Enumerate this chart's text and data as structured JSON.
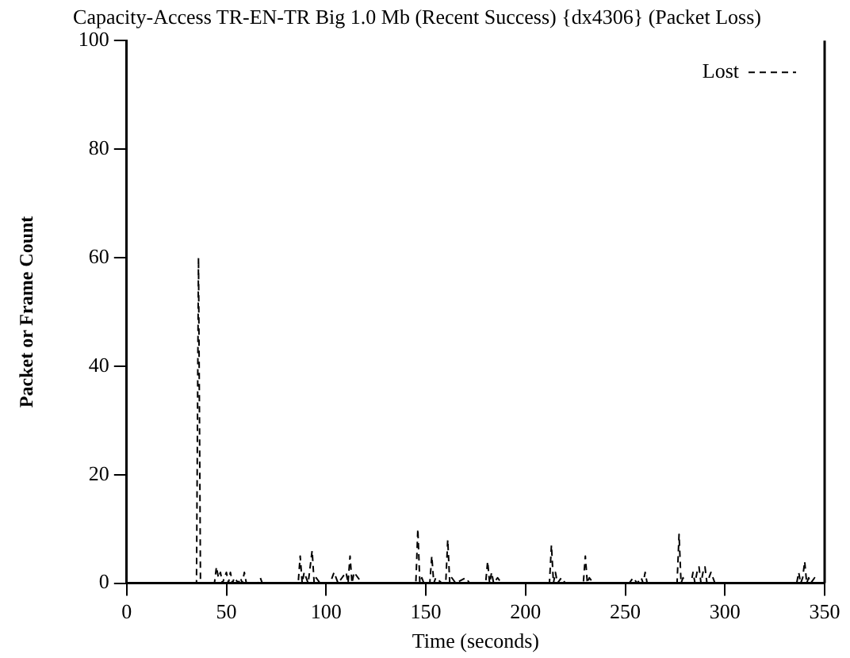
{
  "chart_data": {
    "type": "line",
    "title": "Capacity-Access TR-EN-TR Big 1.0 Mb (Recent Success) {dx4306} (Packet Loss)",
    "xlabel": "Time (seconds)",
    "ylabel": "Packet or Frame Count",
    "xlim": [
      0,
      350
    ],
    "xticks": [
      0,
      50,
      100,
      150,
      200,
      250,
      300,
      350
    ],
    "ylim": [
      0,
      100
    ],
    "yticks": [
      0,
      20,
      40,
      60,
      80,
      100
    ],
    "grid": false,
    "legend": "top right",
    "line_style": "dashed",
    "marker": "none",
    "series": [
      {
        "name": "Lost",
        "color": "#000000",
        "x": [
          0,
          35,
          36,
          37,
          44,
          45,
          46,
          47,
          48,
          49,
          50,
          51,
          52,
          53,
          54,
          56,
          57,
          58,
          59,
          60,
          66,
          67,
          68,
          86,
          87,
          88,
          89,
          91,
          92,
          93,
          94,
          95,
          97,
          102,
          104,
          106,
          108,
          110,
          111,
          112,
          113,
          114,
          116,
          118,
          145,
          146,
          147,
          148,
          149,
          152,
          153,
          154,
          155,
          158,
          160,
          161,
          162,
          163,
          165,
          170,
          172,
          180,
          181,
          182,
          183,
          184,
          186,
          188,
          212,
          213,
          214,
          215,
          216,
          218,
          220,
          229,
          230,
          231,
          232,
          234,
          252,
          254,
          256,
          258,
          259,
          260,
          261,
          276,
          277,
          278,
          279,
          280,
          283,
          284,
          285,
          286,
          287,
          288,
          289,
          290,
          291,
          293,
          294,
          295,
          336,
          337,
          338,
          339,
          340,
          341,
          342,
          343,
          345,
          346,
          350
        ],
        "values": [
          0,
          0,
          60,
          0,
          0,
          3,
          1,
          2,
          0,
          1,
          2,
          0,
          2,
          0,
          1,
          0,
          1,
          0,
          2,
          0,
          0,
          1,
          0,
          0,
          5,
          0,
          2,
          0,
          3,
          6,
          0,
          1,
          0,
          0,
          2,
          0,
          1,
          2,
          0,
          5,
          0,
          2,
          1,
          0,
          0,
          10,
          0,
          1,
          0,
          0,
          5,
          0,
          1,
          0,
          0,
          8,
          0,
          1,
          0,
          1,
          0,
          0,
          4,
          0,
          2,
          0,
          1,
          0,
          0,
          7,
          0,
          2,
          0,
          1,
          0,
          0,
          5,
          0,
          1,
          0,
          0,
          1,
          0,
          1,
          0,
          2,
          0,
          0,
          9,
          0,
          1,
          0,
          0,
          2,
          0,
          2,
          3,
          0,
          2,
          3,
          0,
          2,
          1,
          0,
          0,
          2,
          0,
          1,
          4,
          0,
          1,
          0,
          1,
          0,
          0
        ]
      }
    ]
  }
}
